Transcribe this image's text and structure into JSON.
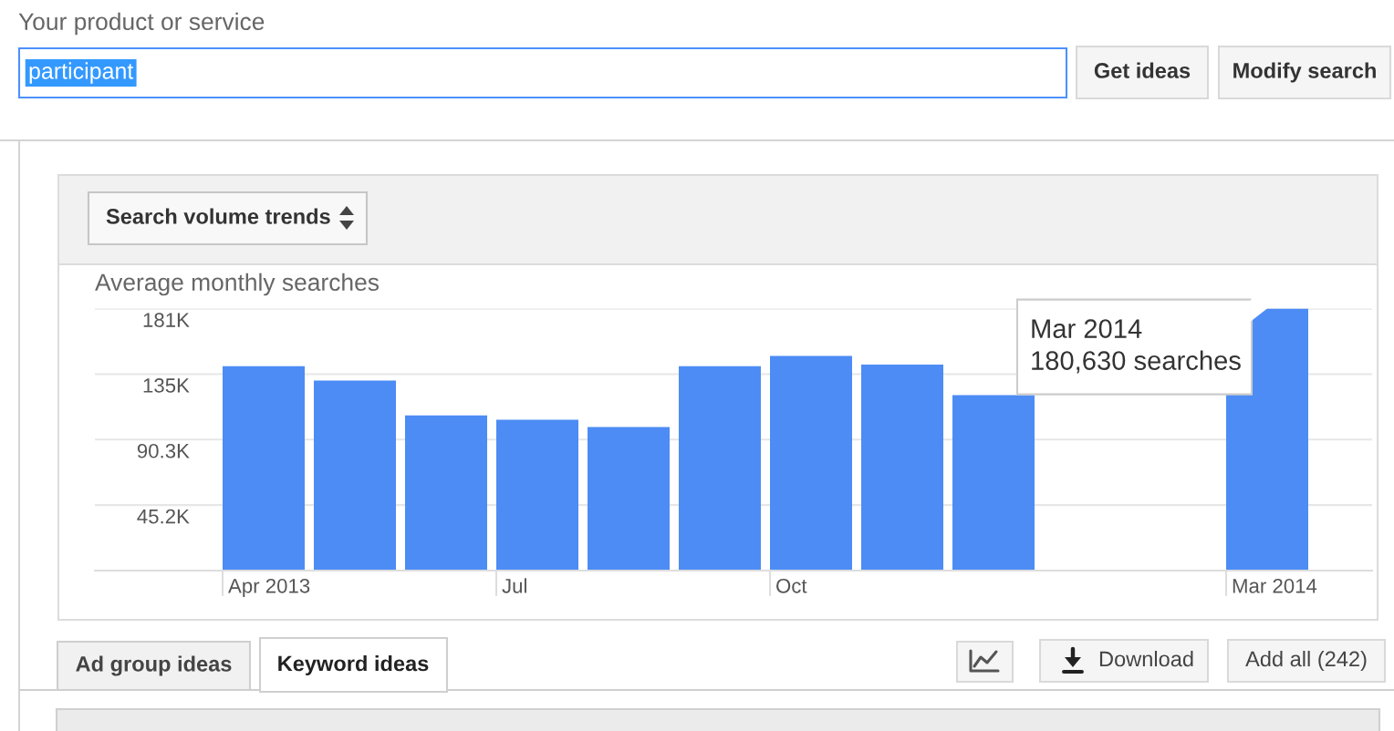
{
  "chart_data": {
    "type": "bar",
    "title": "Average monthly searches",
    "categories": [
      "Apr 2013",
      null,
      null,
      "Jul",
      null,
      null,
      "Oct",
      null,
      null,
      null,
      null,
      "Mar 2014"
    ],
    "values": [
      141000,
      131000,
      107000,
      104000,
      99000,
      141000,
      148000,
      142000,
      121000,
      null,
      null,
      180630
    ],
    "color": "#4d8cf5",
    "ylim": [
      0,
      180630
    ],
    "yticks": [
      {
        "value": 45157.5,
        "label": "45.2K"
      },
      {
        "value": 90315,
        "label": "90.3K"
      },
      {
        "value": 135472.5,
        "label": "135K"
      },
      {
        "value": 180630,
        "label": "181K"
      }
    ],
    "grid": "y",
    "annotations": [
      {
        "text": "Mar 2014\n180,630 searches",
        "x": "Mar 2014",
        "y": 180630
      },
      "Your product or service",
      "participant",
      "Get ideas",
      "Modify search",
      "Search volume trends",
      "Ad group ideas",
      "Keyword ideas",
      "Download",
      "Add all (242)"
    ]
  }
}
